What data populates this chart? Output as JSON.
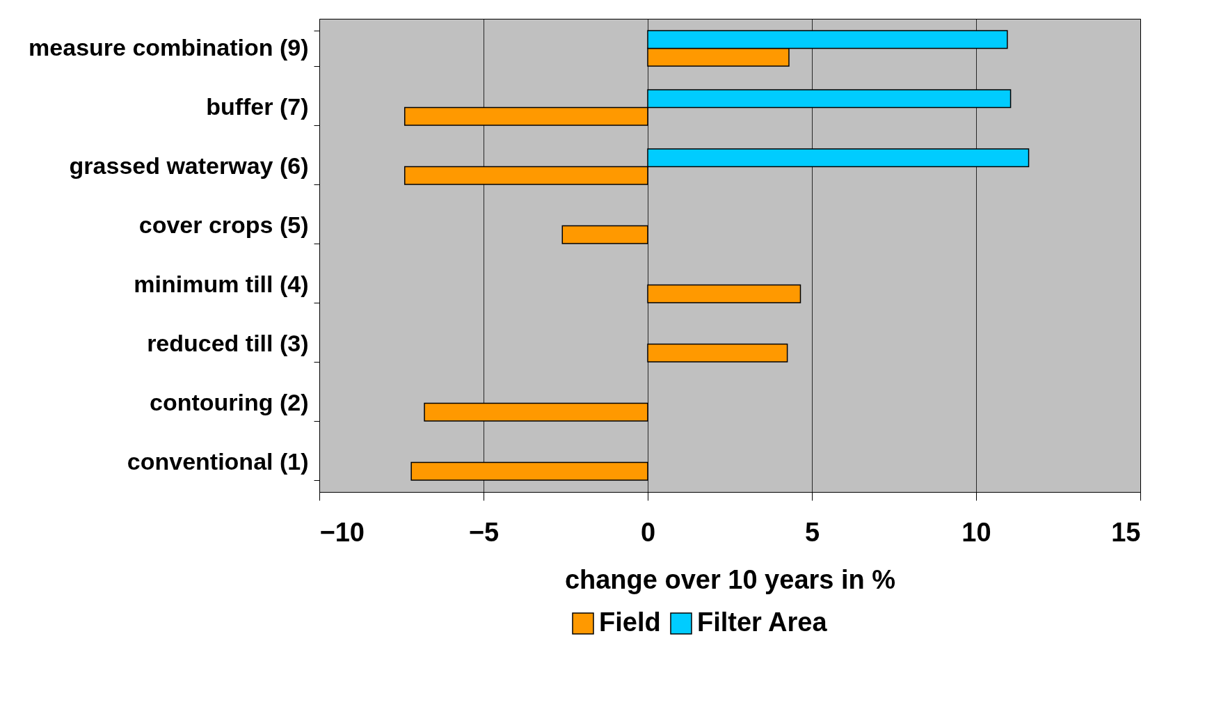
{
  "chart_data": {
    "type": "bar",
    "orientation": "horizontal",
    "xlabel": "change over 10 years in %",
    "categories": [
      "measure combination (9)",
      "buffer (7)",
      "grassed waterway (6)",
      "cover crops (5)",
      "minimum till (4)",
      "reduced till (3)",
      "contouring (2)",
      "conventional (1)"
    ],
    "series": [
      {
        "name": "Field",
        "color": "#ff9900",
        "values": [
          4.3,
          -7.4,
          -7.4,
          -2.6,
          4.65,
          4.25,
          -6.8,
          -7.2
        ]
      },
      {
        "name": "Filter Area",
        "color": "#00ccff",
        "values": [
          10.95,
          11.05,
          11.6,
          null,
          null,
          null,
          null,
          null
        ]
      }
    ],
    "xlim": [
      -10,
      15
    ],
    "xticks": [
      -10,
      -5,
      0,
      5,
      10,
      15
    ],
    "grid": "x",
    "legend": "bottom"
  }
}
